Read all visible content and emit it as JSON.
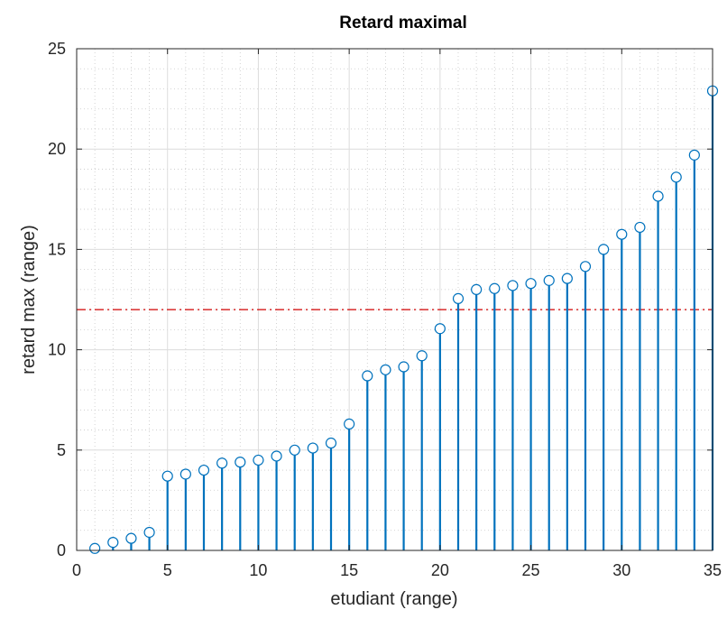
{
  "chart_data": {
    "type": "stem",
    "title": "Retard maximal",
    "xlabel": "etudiant (range)",
    "ylabel": "retard max (range)",
    "xlim": [
      0,
      35
    ],
    "ylim": [
      0,
      25
    ],
    "xticks": [
      0,
      5,
      10,
      15,
      20,
      25,
      30,
      35
    ],
    "yticks": [
      0,
      5,
      10,
      15,
      20,
      25
    ],
    "grid": true,
    "minor_grid": true,
    "x": [
      1,
      2,
      3,
      4,
      5,
      6,
      7,
      8,
      9,
      10,
      11,
      12,
      13,
      14,
      15,
      16,
      17,
      18,
      19,
      20,
      21,
      22,
      23,
      24,
      25,
      26,
      27,
      28,
      29,
      30,
      31,
      32,
      33,
      34,
      35
    ],
    "values": [
      0.1,
      0.4,
      0.6,
      0.9,
      3.7,
      3.8,
      4.0,
      4.35,
      4.4,
      4.5,
      4.7,
      5.0,
      5.1,
      5.35,
      6.3,
      8.7,
      9.0,
      9.15,
      9.7,
      11.05,
      12.55,
      13.0,
      13.05,
      13.2,
      13.3,
      13.45,
      13.55,
      14.15,
      15.0,
      15.75,
      16.1,
      17.65,
      18.6,
      19.7,
      22.9
    ],
    "series_color": "#0072BD",
    "threshold": {
      "y": 12,
      "color": "#D00000",
      "style": "dash-dot"
    }
  }
}
